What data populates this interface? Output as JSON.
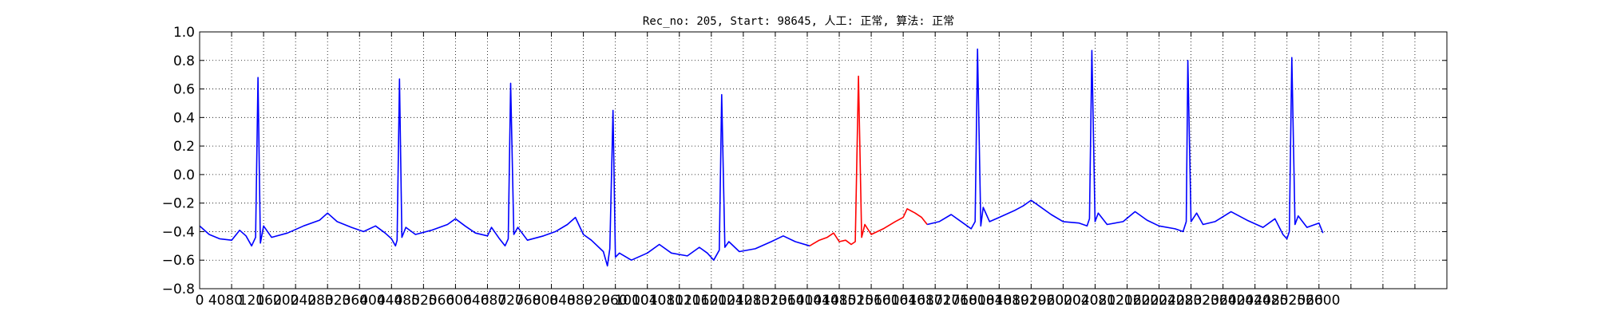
{
  "chart_data": {
    "type": "line",
    "title": "Rec_no: 205, Start: 98645, 人工: 正常, 算法: 正常",
    "xlabel": "",
    "ylabel": "",
    "xlim": [
      0,
      1560
    ],
    "ylim": [
      -0.8,
      1.0
    ],
    "grid": true,
    "grid_style": "dotted",
    "x_tick_step": 40,
    "y_ticks": [
      -0.8,
      -0.6,
      -0.4,
      -0.2,
      0.0,
      0.2,
      0.4,
      0.6,
      0.8,
      1.0
    ],
    "y_tick_labels": [
      "−0.8",
      "−0.6",
      "−0.4",
      "−0.2",
      "0.0",
      "0.2",
      "0.4",
      "0.6",
      "0.8",
      "1.0"
    ],
    "x_tick_labels": [
      "0",
      "40",
      "80",
      "120",
      "160",
      "200",
      "240",
      "280",
      "320",
      "360",
      "400",
      "440",
      "480",
      "520",
      "560",
      "600",
      "640",
      "680",
      "720",
      "760",
      "800",
      "840",
      "880",
      "920",
      "960",
      "1000",
      "1040",
      "1080",
      "1120",
      "1160",
      "1200",
      "1240",
      "1280",
      "1320",
      "1360",
      "1400",
      "1440",
      "1480",
      "1520",
      "1560",
      "1600",
      "1640",
      "1680",
      "1720",
      "1760",
      "1800",
      "1840",
      "1880",
      "1920",
      "1960",
      "2000",
      "2040",
      "2080",
      "2120",
      "2160",
      "2200",
      "2240",
      "2280",
      "2320",
      "2360",
      "2400",
      "2440",
      "2480",
      "2520",
      "2560",
      "2600"
    ],
    "x_end": 1405,
    "series": [
      {
        "color": "#0000ff",
        "points": [
          [
            0,
            -0.36
          ],
          [
            12,
            -0.42
          ],
          [
            25,
            -0.45
          ],
          [
            40,
            -0.46
          ],
          [
            50,
            -0.39
          ],
          [
            58,
            -0.43
          ],
          [
            65,
            -0.5
          ],
          [
            70,
            -0.44
          ],
          [
            73,
            0.68
          ],
          [
            76,
            -0.48
          ],
          [
            80,
            -0.36
          ],
          [
            90,
            -0.44
          ],
          [
            110,
            -0.41
          ],
          [
            130,
            -0.36
          ],
          [
            150,
            -0.32
          ],
          [
            160,
            -0.27
          ],
          [
            172,
            -0.33
          ],
          [
            190,
            -0.37
          ],
          [
            205,
            -0.4
          ],
          [
            220,
            -0.36
          ],
          [
            232,
            -0.41
          ],
          [
            240,
            -0.45
          ],
          [
            245,
            -0.5
          ],
          [
            247,
            -0.46
          ],
          [
            250,
            0.67
          ],
          [
            253,
            -0.44
          ],
          [
            258,
            -0.37
          ],
          [
            270,
            -0.42
          ],
          [
            290,
            -0.39
          ],
          [
            310,
            -0.35
          ],
          [
            320,
            -0.31
          ],
          [
            332,
            -0.36
          ],
          [
            345,
            -0.41
          ],
          [
            360,
            -0.43
          ],
          [
            365,
            -0.37
          ],
          [
            375,
            -0.45
          ],
          [
            382,
            -0.5
          ],
          [
            386,
            -0.45
          ],
          [
            389,
            0.64
          ],
          [
            393,
            -0.42
          ],
          [
            398,
            -0.37
          ],
          [
            410,
            -0.46
          ],
          [
            430,
            -0.43
          ],
          [
            445,
            -0.4
          ],
          [
            460,
            -0.35
          ],
          [
            470,
            -0.3
          ],
          [
            480,
            -0.42
          ],
          [
            490,
            -0.46
          ],
          [
            505,
            -0.54
          ],
          [
            510,
            -0.64
          ],
          [
            513,
            -0.52
          ],
          [
            517,
            0.45
          ],
          [
            520,
            -0.58
          ],
          [
            525,
            -0.55
          ],
          [
            540,
            -0.6
          ],
          [
            560,
            -0.55
          ],
          [
            575,
            -0.49
          ],
          [
            590,
            -0.55
          ],
          [
            610,
            -0.57
          ],
          [
            625,
            -0.51
          ],
          [
            635,
            -0.55
          ],
          [
            643,
            -0.6
          ],
          [
            650,
            -0.53
          ],
          [
            653,
            0.56
          ],
          [
            657,
            -0.51
          ],
          [
            662,
            -0.47
          ],
          [
            675,
            -0.54
          ],
          [
            695,
            -0.52
          ],
          [
            715,
            -0.47
          ],
          [
            730,
            -0.43
          ],
          [
            745,
            -0.47
          ],
          [
            763,
            -0.5
          ]
        ]
      },
      {
        "color": "#ff0000",
        "points": [
          [
            763,
            -0.5
          ],
          [
            775,
            -0.46
          ],
          [
            785,
            -0.44
          ],
          [
            793,
            -0.41
          ],
          [
            800,
            -0.47
          ],
          [
            808,
            -0.46
          ],
          [
            815,
            -0.49
          ],
          [
            820,
            -0.47
          ],
          [
            824,
            0.69
          ],
          [
            828,
            -0.44
          ],
          [
            832,
            -0.35
          ],
          [
            840,
            -0.42
          ],
          [
            855,
            -0.38
          ],
          [
            870,
            -0.33
          ],
          [
            880,
            -0.3
          ],
          [
            885,
            -0.24
          ],
          [
            895,
            -0.27
          ],
          [
            903,
            -0.3
          ],
          [
            910,
            -0.35
          ]
        ]
      },
      {
        "color": "#0000ff",
        "points": [
          [
            910,
            -0.35
          ],
          [
            925,
            -0.33
          ],
          [
            940,
            -0.28
          ],
          [
            955,
            -0.34
          ],
          [
            965,
            -0.38
          ],
          [
            970,
            -0.33
          ],
          [
            973,
            0.88
          ],
          [
            977,
            -0.36
          ],
          [
            980,
            -0.23
          ],
          [
            988,
            -0.33
          ],
          [
            1000,
            -0.3
          ],
          [
            1020,
            -0.25
          ],
          [
            1030,
            -0.22
          ],
          [
            1040,
            -0.18
          ],
          [
            1050,
            -0.22
          ],
          [
            1065,
            -0.28
          ],
          [
            1080,
            -0.33
          ],
          [
            1100,
            -0.34
          ],
          [
            1110,
            -0.36
          ],
          [
            1113,
            -0.31
          ],
          [
            1116,
            0.87
          ],
          [
            1120,
            -0.33
          ],
          [
            1124,
            -0.27
          ],
          [
            1135,
            -0.35
          ],
          [
            1155,
            -0.33
          ],
          [
            1170,
            -0.26
          ],
          [
            1185,
            -0.32
          ],
          [
            1200,
            -0.36
          ],
          [
            1220,
            -0.38
          ],
          [
            1230,
            -0.4
          ],
          [
            1234,
            -0.33
          ],
          [
            1236,
            0.8
          ],
          [
            1240,
            -0.33
          ],
          [
            1247,
            -0.27
          ],
          [
            1255,
            -0.35
          ],
          [
            1270,
            -0.33
          ],
          [
            1290,
            -0.26
          ],
          [
            1310,
            -0.32
          ],
          [
            1330,
            -0.37
          ],
          [
            1345,
            -0.31
          ],
          [
            1355,
            -0.42
          ],
          [
            1360,
            -0.45
          ],
          [
            1363,
            -0.4
          ],
          [
            1366,
            0.82
          ],
          [
            1370,
            -0.35
          ],
          [
            1374,
            -0.29
          ],
          [
            1385,
            -0.37
          ],
          [
            1400,
            -0.34
          ],
          [
            1405,
            -0.41
          ]
        ]
      }
    ]
  }
}
